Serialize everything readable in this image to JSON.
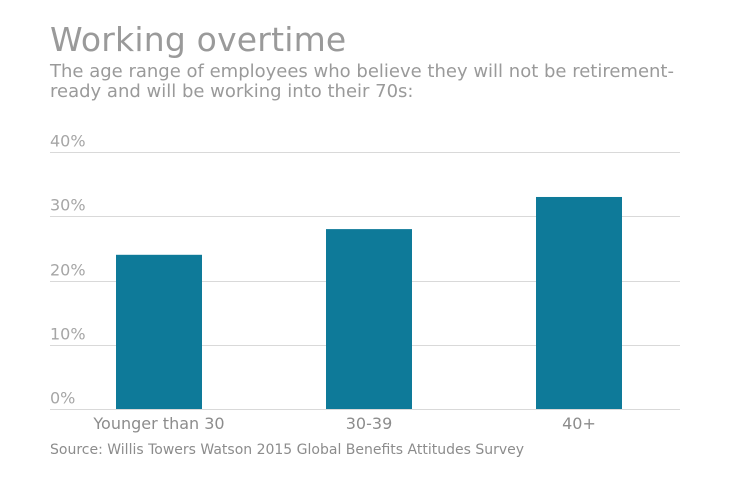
{
  "chart_data": {
    "type": "bar",
    "title": "Working overtime",
    "subtitle": "The age range of employees who believe they will not be retirement-ready and will be working into their 70s:",
    "source": "Source: Willis Towers Watson 2015 Global Benefits Attitudes Survey",
    "categories": [
      "Younger than 30",
      "30-39",
      "40+"
    ],
    "values": [
      24,
      28,
      33
    ],
    "ylim": [
      0,
      40
    ],
    "yticks": [
      0,
      10,
      20,
      30,
      40
    ],
    "ytick_labels": [
      "0%",
      "10%",
      "20%",
      "30%",
      "40%"
    ],
    "grid": true,
    "bar_color": "#0e7a99",
    "grid_color": "#d9d9d9",
    "text_color": "#9a9a9a"
  }
}
